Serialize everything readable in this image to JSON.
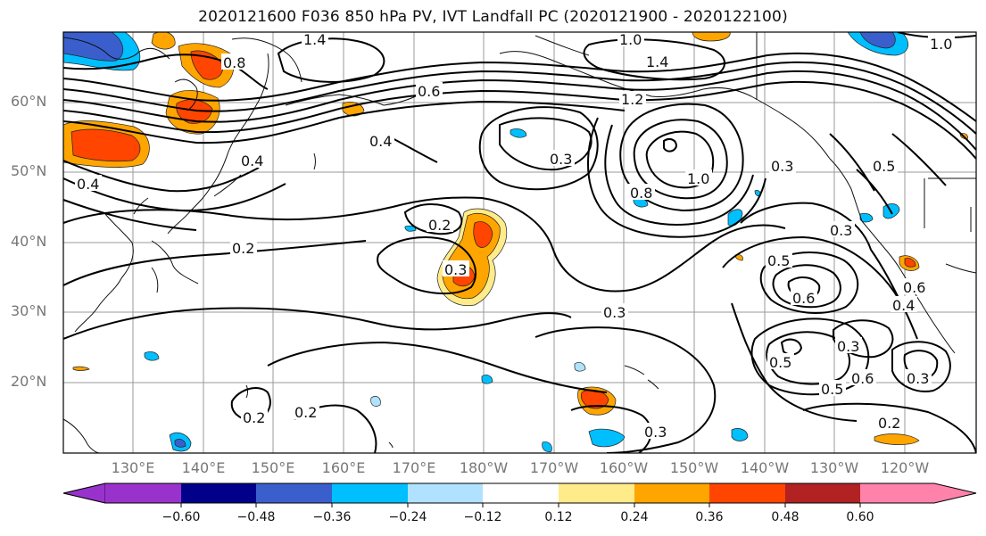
{
  "title": "2020121600 F036 850 hPa PV, IVT Landfall PC (2020121900 - 2020122100)",
  "lat_labels": [
    "60°N",
    "50°N",
    "40°N",
    "30°N",
    "20°N"
  ],
  "lon_labels": [
    "130°E",
    "140°E",
    "150°E",
    "160°E",
    "170°E",
    "180°W",
    "170°W",
    "160°W",
    "150°W",
    "140°W",
    "130°W",
    "120°W"
  ],
  "colorbar": {
    "ticks": [
      "−0.60",
      "−0.48",
      "−0.36",
      "−0.24",
      "−0.12",
      "0.12",
      "0.24",
      "0.36",
      "0.48",
      "0.60"
    ],
    "colors": [
      "#9932cc",
      "#00008b",
      "#3a5fcd",
      "#00bfff",
      "#b0e2ff",
      "#ffffff",
      "#ffeb8a",
      "#ffa500",
      "#ff4500",
      "#b22222",
      "#ff82ab"
    ]
  },
  "contour_labels": [
    "1.4",
    "1.0",
    "1.4",
    "1.0",
    "1.2",
    "0.4",
    "0.4",
    "0.6",
    "0.8",
    "1.0",
    "0.3",
    "0.3",
    "0.5",
    "0.3",
    "0.6",
    "0.5",
    "0.4",
    "0.6",
    "0.3",
    "0.6",
    "0.5",
    "0.2",
    "0.2",
    "0.2",
    "0.2",
    "0.3",
    "0.3",
    "0.3",
    "0.2",
    "0.4",
    "0.3",
    "0.5",
    "0.8"
  ]
}
